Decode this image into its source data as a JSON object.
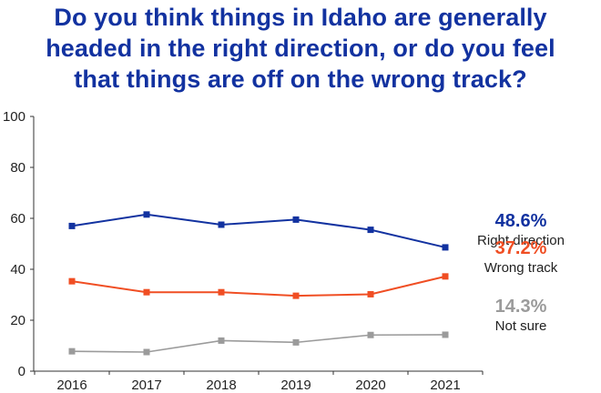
{
  "title_lines": [
    "Do you think things in Idaho are generally",
    "headed in the right direction, or do you feel",
    "that things are off on the wrong track?"
  ],
  "chart_data": {
    "type": "line",
    "title": "Do you think things in Idaho are generally headed in the right direction, or do you feel that things are off on the wrong track?",
    "x": [
      "2016",
      "2017",
      "2018",
      "2019",
      "2020",
      "2021"
    ],
    "ylim": [
      0,
      100
    ],
    "yticks": [
      0,
      20,
      40,
      60,
      80,
      100
    ],
    "grid": false,
    "legend": "right",
    "series": [
      {
        "name": "Right direction",
        "end_label": "48.6%",
        "color": "#1232a0",
        "values": [
          57,
          61.5,
          57.5,
          59.5,
          55.5,
          48.6
        ]
      },
      {
        "name": "Wrong track",
        "end_label": "37.2%",
        "color": "#f04e23",
        "values": [
          35.3,
          31,
          31,
          29.6,
          30.2,
          37.2
        ]
      },
      {
        "name": "Not sure",
        "end_label": "14.3%",
        "color": "#9b9b9b",
        "values": [
          7.8,
          7.5,
          12,
          11.3,
          14.2,
          14.3
        ]
      }
    ]
  }
}
